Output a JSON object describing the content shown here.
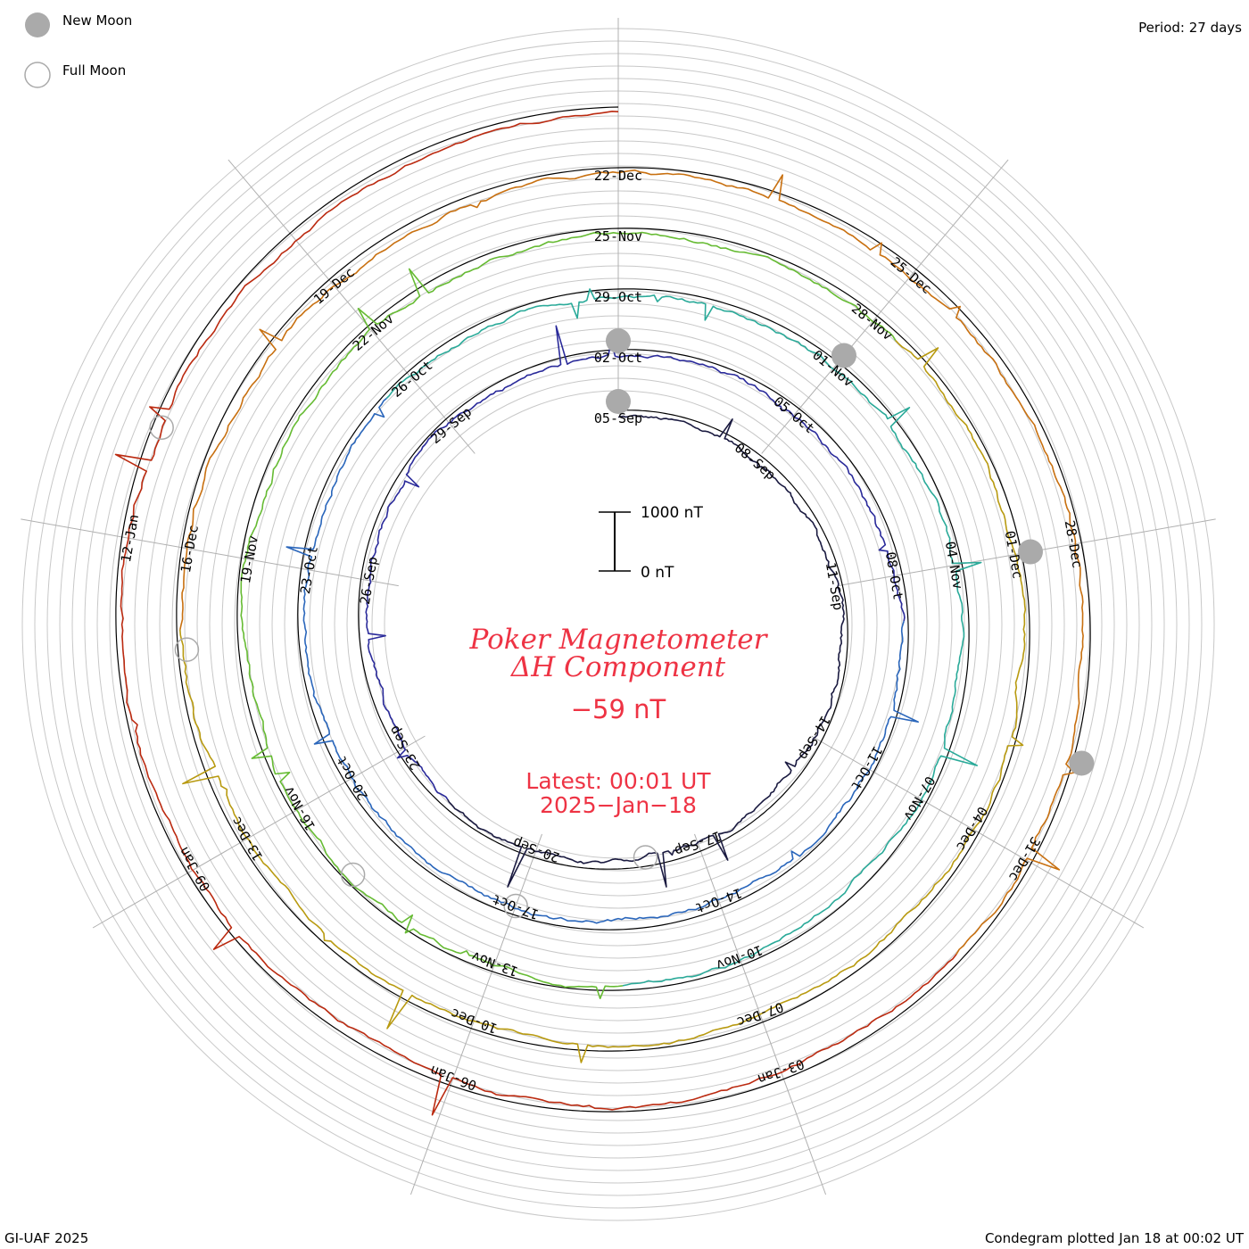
{
  "header": {
    "new_moon_label": "New Moon",
    "full_moon_label": "Full Moon",
    "period_label": "Period: 27 days"
  },
  "footer": {
    "credit": "GI-UAF 2025",
    "plotted": "Condegram plotted Jan 18 at 00:02 UT"
  },
  "center": {
    "title_line1": "Poker Magnetometer",
    "title_line2": "ΔH Component",
    "value": "−59 nT",
    "latest": "Latest: 00:01 UT",
    "date": "2025−Jan−18",
    "scale_top": "1000 nT",
    "scale_bottom": "0 nT"
  },
  "colors": {
    "title": "#ee3344",
    "grid": "#c8c8c8",
    "moon_fill": "#aaaaaa",
    "series": [
      "#1a1a40",
      "#2a2a9a",
      "#2a66bb",
      "#2aaa99",
      "#66bb33",
      "#b89a10",
      "#c87010",
      "#bb2a10"
    ]
  },
  "chart_data": {
    "type": "line",
    "description_period_days": 27,
    "units": "nT",
    "scale_bar_nT": [
      0,
      1000
    ],
    "date_labels": [
      "05-Sep",
      "08-Sep",
      "11-Sep",
      "14-Sep",
      "17-Sep",
      "20-Sep",
      "23-Sep",
      "26-Sep",
      "29-Sep",
      "02-Oct",
      "05-Oct",
      "08-Oct",
      "11-Oct",
      "14-Oct",
      "17-Oct",
      "20-Oct",
      "23-Oct",
      "26-Oct",
      "29-Oct",
      "01-Nov",
      "04-Nov",
      "07-Nov",
      "10-Nov",
      "13-Nov",
      "16-Nov",
      "19-Nov",
      "22-Nov",
      "25-Nov",
      "28-Nov",
      "01-Dec",
      "04-Dec",
      "07-Dec",
      "10-Dec",
      "13-Dec",
      "16-Dec",
      "19-Dec",
      "22-Dec",
      "25-Dec",
      "28-Dec",
      "31-Dec",
      "03-Jan",
      "06-Jan",
      "09-Jan",
      "12-Jan"
    ],
    "rotations": [
      {
        "start": "2024-Sep-05"
      },
      {
        "start": "2024-Oct-02"
      },
      {
        "start": "2024-Oct-29"
      },
      {
        "start": "2024-Nov-25"
      },
      {
        "start": "2024-Dec-22"
      }
    ],
    "new_moons": [
      "2024-Sep-03",
      "2024-Oct-02",
      "2024-Nov-01",
      "2024-Dec-01",
      "2024-Dec-30"
    ],
    "full_moons": [
      "2024-Sep-18",
      "2024-Oct-17",
      "2024-Nov-15",
      "2024-Dec-15",
      "2025-Jan-13"
    ]
  }
}
